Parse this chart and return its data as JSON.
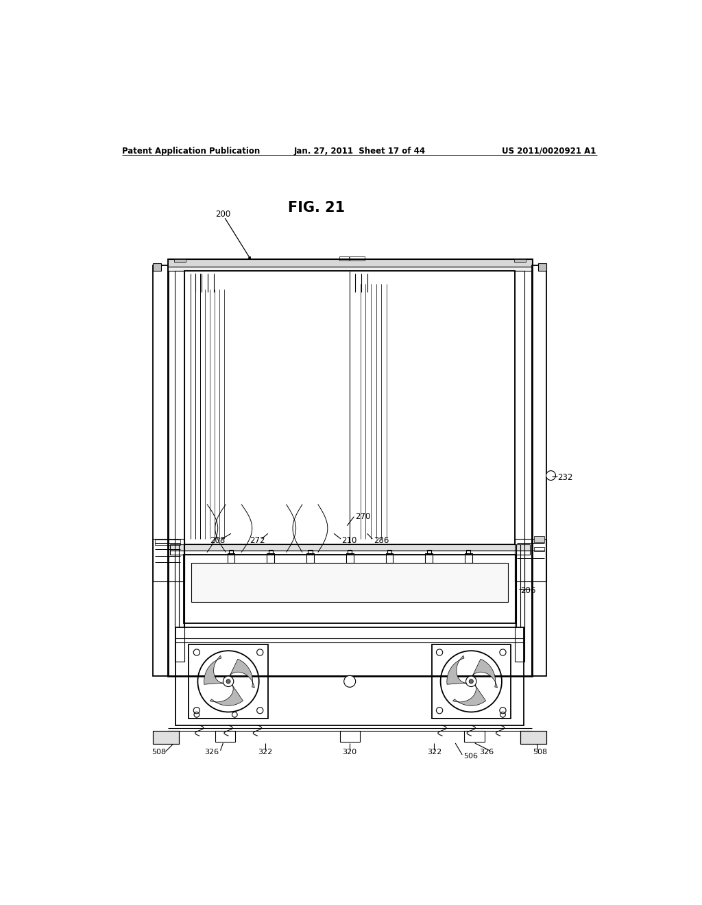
{
  "title": "FIG. 21",
  "header_left": "Patent Application Publication",
  "header_center": "Jan. 27, 2011  Sheet 17 of 44",
  "header_right": "US 2011/0020921 A1",
  "background_color": "#ffffff",
  "line_color": "#000000",
  "label_fontsize": 8.5,
  "title_fontsize": 15,
  "header_fontsize": 8.5,
  "device": {
    "ox": 148,
    "oy": 285,
    "ow": 690,
    "oh": 790
  }
}
